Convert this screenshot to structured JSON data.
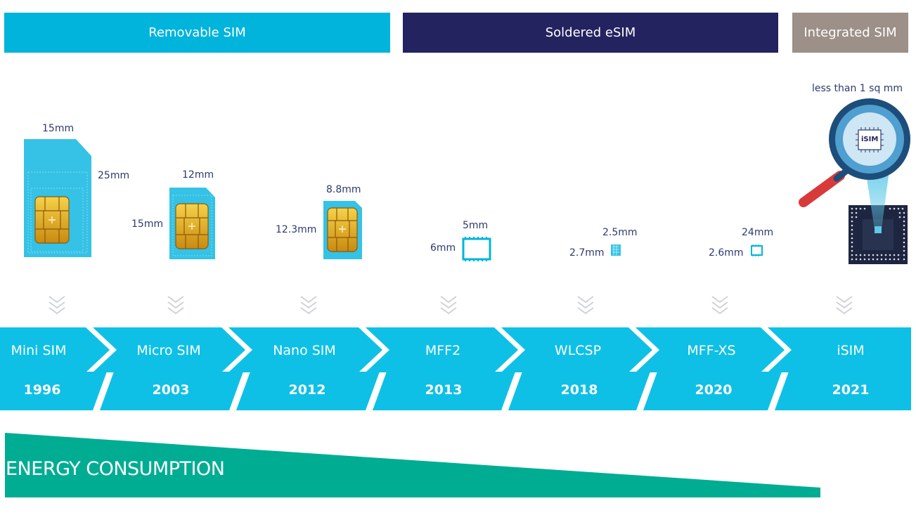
{
  "categories": {
    "removable": {
      "label": "Removable SIM",
      "color": "#00b4dc"
    },
    "soldered": {
      "label": "Soldered eSIM",
      "color": "#232360"
    },
    "integrated": {
      "label": "Integrated SIM",
      "color": "#9c9088"
    }
  },
  "dimensions": {
    "mini_w": "15mm",
    "mini_h": "25mm",
    "micro_w": "12mm",
    "micro_h": "15mm",
    "nano_w": "8.8mm",
    "nano_h": "12.3mm",
    "mff2_w": "5mm",
    "mff2_h": "6mm",
    "wlcsp_w": "2.5mm",
    "wlcsp_h": "2.7mm",
    "mffxs_w": "24mm",
    "mffxs_h": "2.6mm",
    "isim_size": "less than 1 sq mm",
    "isim_chip_text": "iSIM"
  },
  "stages": [
    {
      "name": "Mini SIM",
      "year": "1996"
    },
    {
      "name": "Micro SIM",
      "year": "2003"
    },
    {
      "name": "Nano SIM",
      "year": "2012"
    },
    {
      "name": "MFF2",
      "year": "2013"
    },
    {
      "name": "WLCSP",
      "year": "2018"
    },
    {
      "name": "MFF-XS",
      "year": "2020"
    },
    {
      "name": "iSIM",
      "year": "2021"
    }
  ],
  "energy_label": "ENERGY CONSUMPTION",
  "colors": {
    "timeline": "#0ec0e6",
    "energy": "#00ad93",
    "text_dim": "#2e3a6e",
    "chip_gold": "#e8b020"
  }
}
